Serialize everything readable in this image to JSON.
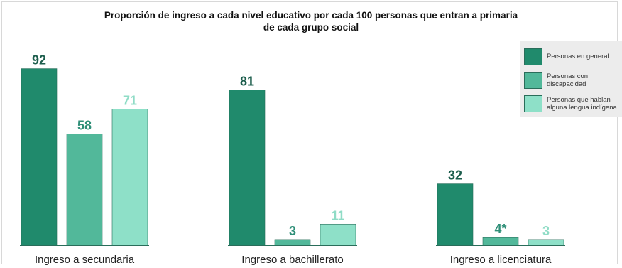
{
  "chart_data": {
    "type": "bar",
    "title_line1": "Proporción de ingreso a cada nivel educativo por cada 100 personas que entran a primaria",
    "title_line2": "de cada grupo social",
    "categories": [
      "Ingreso a secundaria",
      "Ingreso a bachillerato",
      "Ingreso a licenciatura"
    ],
    "series": [
      {
        "name": "Personas en general",
        "color": "#208a6c",
        "values": [
          92,
          81,
          32
        ],
        "labels": [
          "92",
          "81",
          "32"
        ],
        "label_color": "#1d5e4d"
      },
      {
        "name": "Personas con\ndiscapacidad",
        "color": "#52b89a",
        "values": [
          58,
          3,
          4
        ],
        "labels": [
          "58",
          "3",
          "4*"
        ],
        "label_color": "#2f8f78"
      },
      {
        "name": "Personas que hablan\nalguna lengua indígena",
        "color": "#8ee0c8",
        "values": [
          71,
          11,
          3
        ],
        "labels": [
          "71",
          "11",
          "3"
        ],
        "label_color": "#8fdcc6"
      }
    ],
    "ylim": [
      0,
      100
    ],
    "grid": false,
    "legend_position": "top-right"
  }
}
